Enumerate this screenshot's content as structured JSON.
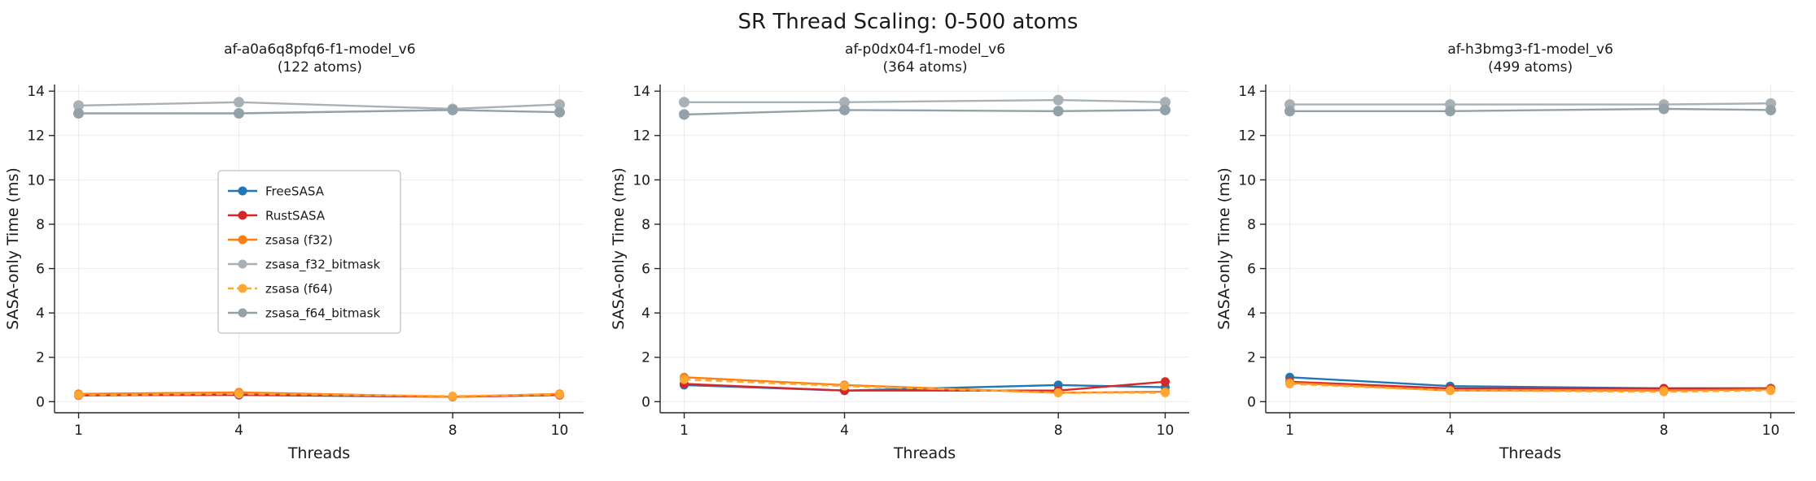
{
  "title": "SR Thread Scaling: 0-500 atoms",
  "chart_data": [
    {
      "type": "line",
      "title": "af-a0a6q8pfq6-f1-model_v6",
      "subtitle": "(122 atoms)",
      "xlabel": "Threads",
      "ylabel": "SASA-only Time (ms)",
      "x": [
        1,
        4,
        8,
        10
      ],
      "xticks": [
        1,
        4,
        8,
        10
      ],
      "yticks": [
        0,
        2,
        4,
        6,
        8,
        10,
        12,
        14
      ],
      "xlim": [
        0.55,
        10.45
      ],
      "ylim": [
        -0.5,
        14.3
      ],
      "legend": true,
      "series": [
        {
          "name": "FreeSASA",
          "color": "#1f77b4",
          "dash": false,
          "marker_r": 5.5,
          "values": [
            0.3,
            0.3,
            0.22,
            0.3
          ]
        },
        {
          "name": "RustSASA",
          "color": "#d62728",
          "dash": false,
          "marker_r": 5.5,
          "values": [
            0.28,
            0.32,
            0.22,
            0.3
          ]
        },
        {
          "name": "zsasa (f32)",
          "color": "#ff7f0e",
          "dash": false,
          "marker_r": 5.5,
          "values": [
            0.35,
            0.42,
            0.22,
            0.35
          ]
        },
        {
          "name": "zsasa_f32_bitmask",
          "color": "#a8b2b6",
          "dash": false,
          "marker_r": 6.5,
          "values": [
            13.35,
            13.5,
            13.2,
            13.4
          ]
        },
        {
          "name": "zsasa (f64)",
          "color": "#ffa733",
          "dash": true,
          "marker_r": 5.5,
          "values": [
            0.3,
            0.35,
            0.25,
            0.32
          ]
        },
        {
          "name": "zsasa_f64_bitmask",
          "color": "#93a2a8",
          "dash": false,
          "marker_r": 6.5,
          "values": [
            13.0,
            13.0,
            13.15,
            13.05
          ]
        }
      ]
    },
    {
      "type": "line",
      "title": "af-p0dx04-f1-model_v6",
      "subtitle": "(364 atoms)",
      "xlabel": "Threads",
      "ylabel": "SASA-only Time (ms)",
      "x": [
        1,
        4,
        8,
        10
      ],
      "xticks": [
        1,
        4,
        8,
        10
      ],
      "yticks": [
        0,
        2,
        4,
        6,
        8,
        10,
        12,
        14
      ],
      "xlim": [
        0.55,
        10.45
      ],
      "ylim": [
        -0.5,
        14.3
      ],
      "legend": false,
      "series": [
        {
          "name": "FreeSASA",
          "color": "#1f77b4",
          "dash": false,
          "marker_r": 5.5,
          "values": [
            0.75,
            0.5,
            0.75,
            0.65
          ]
        },
        {
          "name": "RustSASA",
          "color": "#d62728",
          "dash": false,
          "marker_r": 5.5,
          "values": [
            0.8,
            0.5,
            0.5,
            0.9
          ]
        },
        {
          "name": "zsasa (f32)",
          "color": "#ff7f0e",
          "dash": false,
          "marker_r": 5.5,
          "values": [
            1.1,
            0.75,
            0.4,
            0.45
          ]
        },
        {
          "name": "zsasa_f32_bitmask",
          "color": "#a8b2b6",
          "dash": false,
          "marker_r": 6.5,
          "values": [
            13.5,
            13.5,
            13.6,
            13.5
          ]
        },
        {
          "name": "zsasa (f64)",
          "color": "#ffa733",
          "dash": true,
          "marker_r": 5.5,
          "values": [
            1.0,
            0.7,
            0.4,
            0.4
          ]
        },
        {
          "name": "zsasa_f64_bitmask",
          "color": "#93a2a8",
          "dash": false,
          "marker_r": 6.5,
          "values": [
            12.95,
            13.15,
            13.1,
            13.15
          ]
        }
      ]
    },
    {
      "type": "line",
      "title": "af-h3bmg3-f1-model_v6",
      "subtitle": "(499 atoms)",
      "xlabel": "Threads",
      "ylabel": "SASA-only Time (ms)",
      "x": [
        1,
        4,
        8,
        10
      ],
      "xticks": [
        1,
        4,
        8,
        10
      ],
      "yticks": [
        0,
        2,
        4,
        6,
        8,
        10,
        12,
        14
      ],
      "xlim": [
        0.55,
        10.45
      ],
      "ylim": [
        -0.5,
        14.3
      ],
      "legend": false,
      "series": [
        {
          "name": "FreeSASA",
          "color": "#1f77b4",
          "dash": false,
          "marker_r": 5.5,
          "values": [
            1.1,
            0.7,
            0.6,
            0.6
          ]
        },
        {
          "name": "RustSASA",
          "color": "#d62728",
          "dash": false,
          "marker_r": 5.5,
          "values": [
            0.9,
            0.6,
            0.6,
            0.6
          ]
        },
        {
          "name": "zsasa (f32)",
          "color": "#ff7f0e",
          "dash": false,
          "marker_r": 5.5,
          "values": [
            0.85,
            0.5,
            0.5,
            0.55
          ]
        },
        {
          "name": "zsasa_f32_bitmask",
          "color": "#a8b2b6",
          "dash": false,
          "marker_r": 6.5,
          "values": [
            13.4,
            13.4,
            13.4,
            13.45
          ]
        },
        {
          "name": "zsasa (f64)",
          "color": "#ffa733",
          "dash": true,
          "marker_r": 5.5,
          "values": [
            0.8,
            0.5,
            0.45,
            0.5
          ]
        },
        {
          "name": "zsasa_f64_bitmask",
          "color": "#93a2a8",
          "dash": false,
          "marker_r": 6.5,
          "values": [
            13.1,
            13.1,
            13.2,
            13.15
          ]
        }
      ]
    }
  ],
  "style": {
    "spine_color": "#262626",
    "grid_color": "#ebebeb",
    "legend_border": "#b0b0b0"
  }
}
